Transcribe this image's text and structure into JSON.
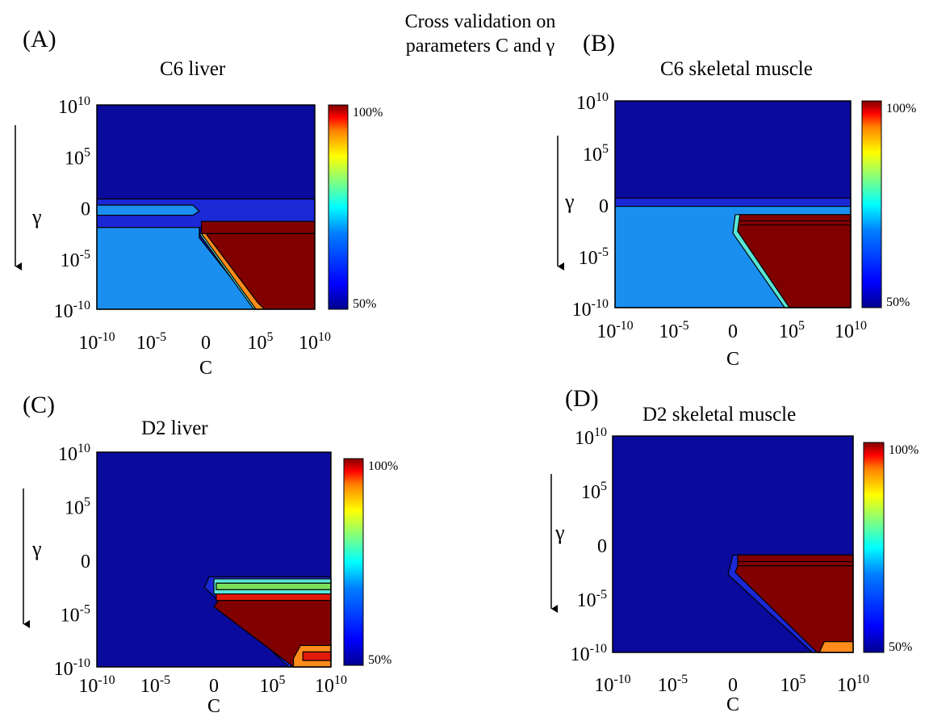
{
  "figure_title_line1": "Cross validation on",
  "figure_title_line2": "parameters C and γ",
  "colors": {
    "dark_blue": "#0a0a9c",
    "mid_blue": "#1a28d6",
    "light_blue": "#1a8ff0",
    "dark_red": "#800000",
    "red": "#e11a0a",
    "orange": "#ff8c1a",
    "yellow": "#ffd21a",
    "green": "#7adf5a",
    "cyan": "#5ae6d6",
    "colorbar_stops": [
      "#00008f",
      "#0000ff",
      "#0080ff",
      "#00ffff",
      "#80ff80",
      "#ffff00",
      "#ff8000",
      "#ff0000",
      "#800000"
    ]
  },
  "chart_data": [
    {
      "type": "heatmap",
      "panel": "(A)",
      "title": "C6 liver",
      "xlabel": "C",
      "ylabel": "γ",
      "x_ticks": [
        "10^-10",
        "10^-5",
        "0",
        "10^5",
        "10^10"
      ],
      "y_ticks": [
        "10^10",
        "10^5",
        "0",
        "10^-5",
        "10^-10"
      ],
      "colorbar_labels": [
        "100%",
        "50%"
      ],
      "regions": [
        {
          "name": "background",
          "level": "dark_blue"
        },
        {
          "name": "band",
          "level": "mid_blue"
        },
        {
          "name": "lower-left",
          "level": "light_blue"
        },
        {
          "name": "lower-right",
          "level": "dark_red"
        }
      ]
    },
    {
      "type": "heatmap",
      "panel": "(B)",
      "title": "C6 skeletal muscle",
      "xlabel": "C",
      "ylabel": "γ",
      "x_ticks": [
        "10^-10",
        "10^-5",
        "0",
        "10^5",
        "10^10"
      ],
      "y_ticks": [
        "10^10",
        "10^5",
        "0",
        "10^-5",
        "10^-10"
      ],
      "colorbar_labels": [
        "100%",
        "50%"
      ],
      "regions": [
        {
          "name": "background",
          "level": "dark_blue"
        },
        {
          "name": "band",
          "level": "mid_blue"
        },
        {
          "name": "lower-left",
          "level": "light_blue"
        },
        {
          "name": "lower-right",
          "level": "dark_red"
        }
      ]
    },
    {
      "type": "heatmap",
      "panel": "(C)",
      "title": "D2 liver",
      "xlabel": "C",
      "ylabel": "γ",
      "x_ticks": [
        "10^-10",
        "10^-5",
        "0",
        "10^5",
        "10^10"
      ],
      "y_ticks": [
        "10^10",
        "10^5",
        "0",
        "10^-5",
        "10^-10"
      ],
      "colorbar_labels": [
        "100%",
        "50%"
      ],
      "regions": [
        {
          "name": "background",
          "level": "dark_blue"
        },
        {
          "name": "lower-right",
          "level": "dark_red"
        }
      ]
    },
    {
      "type": "heatmap",
      "panel": "(D)",
      "title": "D2 skeletal muscle",
      "xlabel": "C",
      "ylabel": "γ",
      "x_ticks": [
        "10^-10",
        "10^-5",
        "0",
        "10^5",
        "10^10"
      ],
      "y_ticks": [
        "10^10",
        "10^5",
        "0",
        "10^-5",
        "10^-10"
      ],
      "colorbar_labels": [
        "100%",
        "50%"
      ],
      "regions": [
        {
          "name": "background",
          "level": "dark_blue"
        },
        {
          "name": "lower-right",
          "level": "dark_red"
        }
      ]
    }
  ]
}
